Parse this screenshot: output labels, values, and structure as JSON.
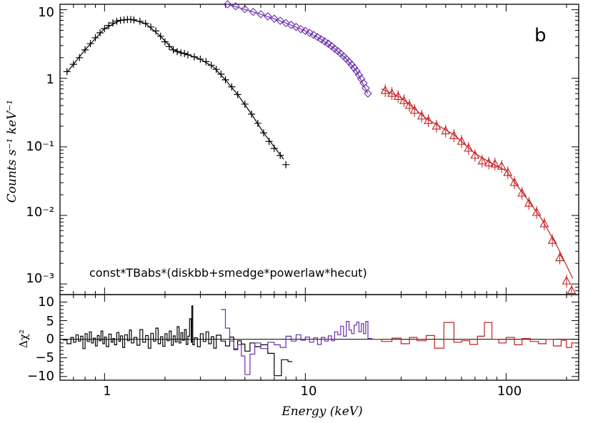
{
  "chart_data": {
    "type": "scatter",
    "x_scale": "log",
    "y_scale": "log",
    "xlim": [
      0.6,
      230
    ],
    "ylim": [
      0.0007,
      12
    ],
    "panel_label": "b",
    "model_label": "const*TBabs*(diskbb+smedge*powerlaw*hecut)",
    "ylabel": "Counts s⁻¹ keV⁻¹",
    "xlabel": "Energy (keV)",
    "top_y_ticks": [
      "10",
      "1",
      "10⁻¹",
      "10⁻²",
      "10⁻³"
    ],
    "x_ticks": [
      "1",
      "10",
      "100"
    ],
    "series": [
      {
        "marker": "plus",
        "color": "#000000",
        "points": [
          [
            0.65,
            1.25
          ],
          [
            0.7,
            1.6
          ],
          [
            0.75,
            2.0
          ],
          [
            0.8,
            2.6
          ],
          [
            0.85,
            3.2
          ],
          [
            0.9,
            3.9
          ],
          [
            0.95,
            4.6
          ],
          [
            1.0,
            5.3
          ],
          [
            1.05,
            5.9
          ],
          [
            1.1,
            6.4
          ],
          [
            1.15,
            6.8
          ],
          [
            1.2,
            7.0
          ],
          [
            1.25,
            7.1
          ],
          [
            1.3,
            7.2
          ],
          [
            1.35,
            7.2
          ],
          [
            1.4,
            7.1
          ],
          [
            1.5,
            6.8
          ],
          [
            1.6,
            6.3
          ],
          [
            1.7,
            5.6
          ],
          [
            1.8,
            4.9
          ],
          [
            1.9,
            4.1
          ],
          [
            2.0,
            3.4
          ],
          [
            2.1,
            2.9
          ],
          [
            2.2,
            2.6
          ],
          [
            2.3,
            2.45
          ],
          [
            2.4,
            2.35
          ],
          [
            2.5,
            2.3
          ],
          [
            2.6,
            2.2
          ],
          [
            2.8,
            2.05
          ],
          [
            3.0,
            1.9
          ],
          [
            3.2,
            1.75
          ],
          [
            3.4,
            1.55
          ],
          [
            3.6,
            1.35
          ],
          [
            3.8,
            1.15
          ],
          [
            4.0,
            0.95
          ],
          [
            4.3,
            0.75
          ],
          [
            4.6,
            0.58
          ],
          [
            5.0,
            0.42
          ],
          [
            5.4,
            0.3
          ],
          [
            5.8,
            0.22
          ],
          [
            6.2,
            0.16
          ],
          [
            6.6,
            0.12
          ],
          [
            7.0,
            0.095
          ],
          [
            7.5,
            0.075
          ],
          [
            8.0,
            0.055
          ]
        ],
        "model": [
          [
            0.65,
            1.22
          ],
          [
            0.8,
            2.6
          ],
          [
            1.0,
            5.3
          ],
          [
            1.2,
            7.0
          ],
          [
            1.35,
            7.2
          ],
          [
            1.6,
            6.3
          ],
          [
            1.9,
            4.1
          ],
          [
            2.2,
            2.6
          ],
          [
            2.5,
            2.3
          ],
          [
            3.0,
            1.9
          ],
          [
            3.5,
            1.45
          ],
          [
            4.0,
            0.95
          ],
          [
            4.6,
            0.58
          ],
          [
            5.4,
            0.3
          ],
          [
            6.2,
            0.16
          ],
          [
            7.0,
            0.1
          ],
          [
            7.8,
            0.066
          ]
        ]
      },
      {
        "marker": "diamond",
        "color": "#6a2fa8",
        "points": [
          [
            4.1,
            12.0
          ],
          [
            4.5,
            11.2
          ],
          [
            5.0,
            10.2
          ],
          [
            5.5,
            9.3
          ],
          [
            6.0,
            8.6
          ],
          [
            6.5,
            8.0
          ],
          [
            7.0,
            7.4
          ],
          [
            7.5,
            6.9
          ],
          [
            8.0,
            6.4
          ],
          [
            8.5,
            6.0
          ],
          [
            9.0,
            5.6
          ],
          [
            9.5,
            5.2
          ],
          [
            10.0,
            4.9
          ],
          [
            10.5,
            4.6
          ],
          [
            11.0,
            4.3
          ],
          [
            11.5,
            4.0
          ],
          [
            12.0,
            3.7
          ],
          [
            12.5,
            3.45
          ],
          [
            13.0,
            3.2
          ],
          [
            13.5,
            2.95
          ],
          [
            14.0,
            2.7
          ],
          [
            14.5,
            2.5
          ],
          [
            15.0,
            2.3
          ],
          [
            15.5,
            2.1
          ],
          [
            16.0,
            1.92
          ],
          [
            16.5,
            1.75
          ],
          [
            17.0,
            1.58
          ],
          [
            17.5,
            1.42
          ],
          [
            18.0,
            1.27
          ],
          [
            18.5,
            1.12
          ],
          [
            19.0,
            0.98
          ],
          [
            19.5,
            0.85
          ],
          [
            20.0,
            0.72
          ],
          [
            20.5,
            0.6
          ]
        ],
        "model": [
          [
            4.1,
            12.0
          ],
          [
            6.0,
            8.6
          ],
          [
            8.0,
            6.4
          ],
          [
            10.0,
            4.9
          ],
          [
            12.0,
            3.7
          ],
          [
            14.0,
            2.7
          ],
          [
            16.0,
            1.92
          ],
          [
            18.0,
            1.27
          ],
          [
            20.5,
            0.6
          ]
        ]
      },
      {
        "marker": "triangle",
        "color": "#c41e1e",
        "points": [
          [
            25,
            0.66
          ],
          [
            27,
            0.6
          ],
          [
            29,
            0.54
          ],
          [
            31,
            0.47
          ],
          [
            33,
            0.4
          ],
          [
            35,
            0.34
          ],
          [
            38,
            0.28
          ],
          [
            41,
            0.24
          ],
          [
            45,
            0.2
          ],
          [
            50,
            0.17
          ],
          [
            55,
            0.145
          ],
          [
            60,
            0.12
          ],
          [
            65,
            0.095
          ],
          [
            70,
            0.075
          ],
          [
            76,
            0.062
          ],
          [
            82,
            0.058
          ],
          [
            88,
            0.056
          ],
          [
            95,
            0.052
          ],
          [
            102,
            0.042
          ],
          [
            110,
            0.03
          ],
          [
            120,
            0.021
          ],
          [
            130,
            0.015
          ],
          [
            142,
            0.011
          ],
          [
            155,
            0.0075
          ],
          [
            170,
            0.0043
          ],
          [
            185,
            0.0024
          ],
          [
            200,
            0.0011
          ],
          [
            212,
            0.0008
          ]
        ],
        "model": [
          [
            24,
            0.7
          ],
          [
            30,
            0.52
          ],
          [
            40,
            0.26
          ],
          [
            55,
            0.15
          ],
          [
            70,
            0.08
          ],
          [
            85,
            0.057
          ],
          [
            100,
            0.045
          ],
          [
            120,
            0.022
          ],
          [
            150,
            0.009
          ],
          [
            180,
            0.0035
          ],
          [
            215,
            0.0012
          ]
        ]
      }
    ],
    "residual_panel": {
      "ylabel": "Δχ²",
      "ylim": [
        -11,
        12
      ],
      "y_ticks": [
        "10",
        "5",
        "0",
        "−5",
        "−10"
      ],
      "series": [
        {
          "color": "#000000",
          "steps": [
            [
              0.62,
              -0.2
            ],
            [
              0.65,
              -1.2
            ],
            [
              0.68,
              0.5
            ],
            [
              0.7,
              -0.8
            ],
            [
              0.72,
              1.2
            ],
            [
              0.74,
              -0.5
            ],
            [
              0.76,
              0.8
            ],
            [
              0.78,
              -2.5
            ],
            [
              0.8,
              1.5
            ],
            [
              0.82,
              -0.6
            ],
            [
              0.84,
              2.0
            ],
            [
              0.86,
              -1.0
            ],
            [
              0.88,
              0.3
            ],
            [
              0.9,
              -1.8
            ],
            [
              0.92,
              1.0
            ],
            [
              0.94,
              -0.4
            ],
            [
              0.96,
              2.2
            ],
            [
              0.98,
              -1.2
            ],
            [
              1.0,
              0.6
            ],
            [
              1.02,
              -2.0
            ],
            [
              1.05,
              1.4
            ],
            [
              1.08,
              -0.8
            ],
            [
              1.1,
              0.2
            ],
            [
              1.12,
              -1.5
            ],
            [
              1.15,
              1.8
            ],
            [
              1.18,
              -0.6
            ],
            [
              1.2,
              0.9
            ],
            [
              1.23,
              -2.2
            ],
            [
              1.26,
              1.2
            ],
            [
              1.3,
              -0.4
            ],
            [
              1.33,
              2.5
            ],
            [
              1.36,
              -1.0
            ],
            [
              1.4,
              0.5
            ],
            [
              1.45,
              -1.6
            ],
            [
              1.5,
              2.6
            ],
            [
              1.55,
              -0.8
            ],
            [
              1.6,
              1.0
            ],
            [
              1.65,
              -2.4
            ],
            [
              1.7,
              1.6
            ],
            [
              1.75,
              -0.5
            ],
            [
              1.8,
              3.0
            ],
            [
              1.85,
              -1.2
            ],
            [
              1.9,
              0.7
            ],
            [
              1.95,
              -1.9
            ],
            [
              2.0,
              1.5
            ],
            [
              2.05,
              -0.4
            ],
            [
              2.1,
              2.2
            ],
            [
              2.15,
              -1.6
            ],
            [
              2.2,
              0.9
            ],
            [
              2.25,
              -0.7
            ],
            [
              2.3,
              3.4
            ],
            [
              2.35,
              -1.0
            ],
            [
              2.4,
              1.8
            ],
            [
              2.45,
              -0.3
            ],
            [
              2.5,
              2.6
            ],
            [
              2.55,
              -1.4
            ],
            [
              2.6,
              0.8
            ],
            [
              2.65,
              5.5
            ],
            [
              2.7,
              -0.8
            ],
            [
              2.72,
              9.0
            ],
            [
              2.75,
              -1.5
            ],
            [
              2.8,
              0.4
            ],
            [
              2.9,
              -2.0
            ],
            [
              3.0,
              1.5
            ],
            [
              3.1,
              -0.6
            ],
            [
              3.2,
              2.0
            ],
            [
              3.3,
              -1.2
            ],
            [
              3.4,
              0.7
            ],
            [
              3.5,
              -2.4
            ],
            [
              3.6,
              1.1
            ],
            [
              3.8,
              -0.5
            ],
            [
              4.0,
              -1.8
            ],
            [
              4.2,
              0.6
            ],
            [
              4.4,
              -2.8
            ],
            [
              4.6,
              -0.4
            ],
            [
              4.8,
              -1.3
            ],
            [
              5.0,
              -3.2
            ],
            [
              5.3,
              -1.0
            ],
            [
              5.6,
              -2.0
            ],
            [
              6.0,
              -1.5
            ],
            [
              6.5,
              -3.8
            ],
            [
              7.0,
              -9.8
            ],
            [
              7.6,
              -5.5
            ],
            [
              8.2,
              -6.0
            ]
          ]
        },
        {
          "color": "#6a2fa8",
          "steps": [
            [
              3.8,
              8.0
            ],
            [
              4.0,
              3.0
            ],
            [
              4.2,
              -0.5
            ],
            [
              4.4,
              -2.5
            ],
            [
              4.6,
              -1.5
            ],
            [
              4.8,
              -4.5
            ],
            [
              5.0,
              -9.5
            ],
            [
              5.3,
              -4.0
            ],
            [
              5.6,
              -1.0
            ],
            [
              6.0,
              -2.5
            ],
            [
              6.5,
              -0.8
            ],
            [
              7.0,
              -1.5
            ],
            [
              7.5,
              -2.2
            ],
            [
              8.0,
              0.8
            ],
            [
              8.5,
              -0.5
            ],
            [
              9.0,
              1.2
            ],
            [
              9.5,
              -0.3
            ],
            [
              10.0,
              0.6
            ],
            [
              10.5,
              -0.8
            ],
            [
              11.0,
              0.4
            ],
            [
              11.5,
              -1.4
            ],
            [
              12.0,
              0.5
            ],
            [
              12.5,
              -0.5
            ],
            [
              13.0,
              0.9
            ],
            [
              13.5,
              -0.4
            ],
            [
              14.0,
              2.0
            ],
            [
              14.5,
              1.2
            ],
            [
              15.0,
              3.5
            ],
            [
              15.5,
              0.8
            ],
            [
              16.0,
              4.8
            ],
            [
              16.5,
              2.5
            ],
            [
              17.0,
              1.5
            ],
            [
              17.5,
              3.8
            ],
            [
              18.0,
              4.6
            ],
            [
              18.5,
              2.0
            ],
            [
              19.0,
              4.2
            ],
            [
              19.5,
              1.5
            ],
            [
              20.0,
              4.8
            ],
            [
              20.5,
              0.2
            ]
          ]
        },
        {
          "color": "#c41e1e",
          "steps": [
            [
              22,
              0.0
            ],
            [
              24,
              -0.6
            ],
            [
              27,
              0.3
            ],
            [
              30,
              -1.2
            ],
            [
              33,
              0.5
            ],
            [
              36,
              -0.4
            ],
            [
              40,
              1.0
            ],
            [
              44,
              -2.4
            ],
            [
              49,
              4.5
            ],
            [
              55,
              -0.8
            ],
            [
              60,
              -0.4
            ],
            [
              66,
              -1.4
            ],
            [
              72,
              0.8
            ],
            [
              78,
              4.5
            ],
            [
              85,
              0.0
            ],
            [
              92,
              -1.0
            ],
            [
              100,
              0.5
            ],
            [
              110,
              -1.5
            ],
            [
              120,
              0.2
            ],
            [
              132,
              -0.6
            ],
            [
              145,
              -1.2
            ],
            [
              158,
              0.0
            ],
            [
              172,
              -1.8
            ],
            [
              188,
              -0.3
            ],
            [
              200,
              -2.2
            ],
            [
              212,
              -1.0
            ]
          ]
        }
      ]
    }
  }
}
